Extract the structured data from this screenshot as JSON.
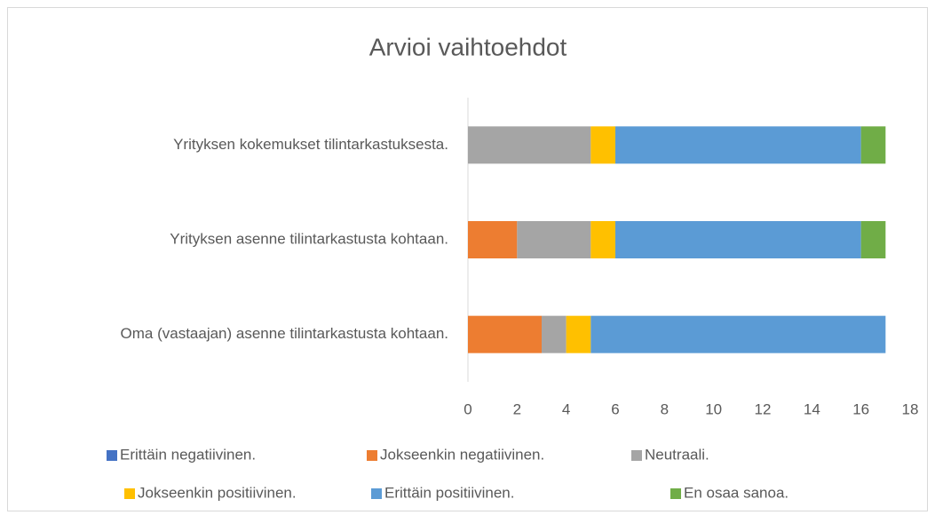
{
  "chart_data": {
    "type": "stacked_barh",
    "title": "Arvioi vaihtoehdot",
    "categories": [
      "Yrityksen kokemukset tilintarkastuksesta.",
      "Yrityksen asenne tilintarkastusta kohtaan.",
      "Oma (vastaajan) asenne tilintarkastusta kohtaan."
    ],
    "series": [
      {
        "name": "Erittäin negatiivinen.",
        "color": "#4472c4",
        "values": [
          0,
          0,
          0
        ]
      },
      {
        "name": "Jokseenkin negatiivinen.",
        "color": "#ed7d31",
        "values": [
          0,
          2,
          3
        ]
      },
      {
        "name": "Neutraali.",
        "color": "#a5a5a5",
        "values": [
          5,
          3,
          1
        ]
      },
      {
        "name": "Jokseenkin positiivinen.",
        "color": "#ffc000",
        "values": [
          1,
          1,
          1
        ]
      },
      {
        "name": "Erittäin positiivinen.",
        "color": "#5b9bd5",
        "values": [
          10,
          10,
          12
        ]
      },
      {
        "name": "En osaa sanoa.",
        "color": "#70ad47",
        "values": [
          1,
          1,
          0
        ]
      }
    ],
    "xlim": [
      0,
      18
    ],
    "xticks": [
      0,
      2,
      4,
      6,
      8,
      10,
      12,
      14,
      16,
      18
    ],
    "grid": false,
    "legend": "bottom"
  }
}
